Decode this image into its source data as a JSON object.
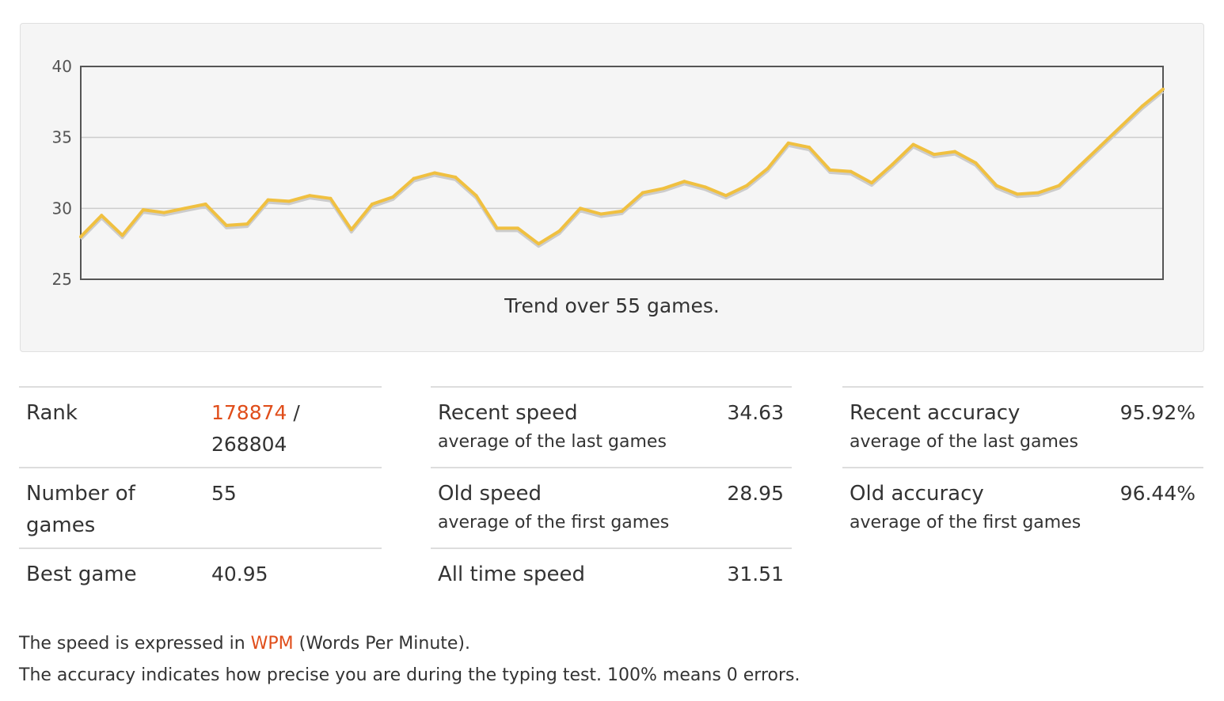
{
  "chart": {
    "caption": "Trend over 55 games.",
    "line_color": "#f0c040",
    "shadow_color": "#cccccc",
    "grid_color": "#cccccc"
  },
  "chart_data": {
    "type": "line",
    "title": "",
    "xlabel": "",
    "ylabel": "",
    "ylim": [
      25,
      40
    ],
    "yticks": [
      25,
      30,
      35,
      40
    ],
    "grid": true,
    "series": [
      {
        "values": [
          28.0,
          29.5,
          28.1,
          29.9,
          29.7,
          30.0,
          30.3,
          28.8,
          28.9,
          30.6,
          30.5,
          30.9,
          30.7,
          28.5,
          30.3,
          30.8,
          32.1,
          32.5,
          32.2,
          30.9,
          28.6,
          28.6,
          27.5,
          28.4,
          30.0,
          29.6,
          29.8,
          31.1,
          31.4,
          31.9,
          31.5,
          30.9,
          31.6,
          32.8,
          34.6,
          34.3,
          32.7,
          32.6,
          31.8,
          33.1,
          34.5,
          33.8,
          34.0,
          33.2,
          31.6,
          31.0,
          31.1,
          31.6,
          33.0,
          34.4,
          35.8,
          37.2,
          38.4
        ]
      }
    ]
  },
  "stats": {
    "col1": {
      "rank_label": "Rank",
      "rank_value": "178874",
      "rank_sep": " /",
      "rank_total": "268804",
      "games_label_1": "Number of",
      "games_label_2": "games",
      "games_value": "55",
      "best_label": "Best game",
      "best_value": "40.95"
    },
    "col2": {
      "recent_label": "Recent speed",
      "recent_sub": "average of the last games",
      "recent_value": "34.63",
      "old_label": "Old speed",
      "old_sub": "average of the first games",
      "old_value": "28.95",
      "alltime_label": "All time speed",
      "alltime_value": "31.51"
    },
    "col3": {
      "recent_label": "Recent accuracy",
      "recent_sub": "average of the last games",
      "recent_value": "95.92%",
      "old_label": "Old accuracy",
      "old_sub": "average of the first games",
      "old_value": "96.44%"
    }
  },
  "footer": {
    "line1_pre": "The speed is expressed in ",
    "line1_link": "WPM",
    "line1_post": " (Words Per Minute).",
    "line2": "The accuracy indicates how precise you are during the typing test. 100% means 0 errors."
  },
  "accent_color": "#e04e1b"
}
